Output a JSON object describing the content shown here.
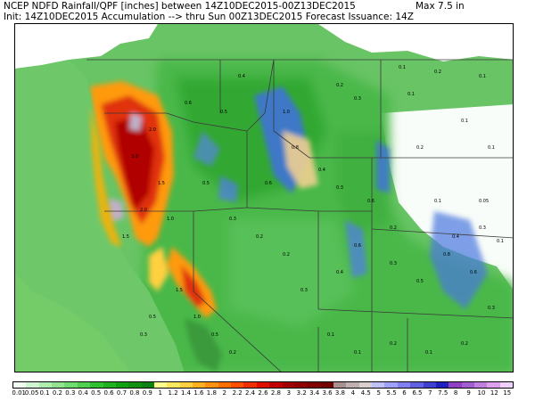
{
  "header": {
    "line1": "NCEP NDFD Rainfall/QPF [inches] between 14Z10DEC2015-00Z13DEC2015",
    "line2": "Init: 14Z10DEC2015 Accumulation --> thru Sun 00Z13DEC2015     Forecast Issuance: 14Z",
    "max": "Max   7.5 in"
  },
  "map_labels": {
    "sample_values": [
      "0.1",
      "0.2",
      "0.3",
      "0.4",
      "0.5",
      "0.6",
      "0.8",
      "1.0",
      "1.5",
      "2.0",
      "3.0",
      "0.05"
    ]
  },
  "colors": {
    "ocean": "#74cc68",
    "no_precip": "#ffffff",
    "state_lines": "#3a3a3a"
  },
  "legend": {
    "labels": [
      "0.01",
      "0.05",
      "0.1",
      "0.2",
      "0.3",
      "0.4",
      "0.5",
      "0.6",
      "0.7",
      "0.8",
      "0.9",
      "1",
      "1.2",
      "1.4",
      "1.6",
      "1.8",
      "2",
      "2.2",
      "2.4",
      "2.6",
      "2.8",
      "3",
      "3.2",
      "3.4",
      "3.6",
      "3.8",
      "4",
      "4.5",
      "5",
      "5.5",
      "6",
      "6.5",
      "7",
      "7.5",
      "8",
      "9",
      "10",
      "12",
      "15"
    ],
    "colors": [
      "#f0fff0",
      "#d0f5d0",
      "#b0ecb0",
      "#90e490",
      "#70dc70",
      "#50d050",
      "#30c030",
      "#20b020",
      "#10a010",
      "#109010",
      "#108010",
      "#ffff90",
      "#ffe860",
      "#ffd040",
      "#ffb020",
      "#ff9010",
      "#ff7000",
      "#ff5000",
      "#f03000",
      "#e01000",
      "#c00000",
      "#a00000",
      "#900000",
      "#800000",
      "#700000",
      "#a89090",
      "#c0b0b0",
      "#d8d0d0",
      "#c0c0ff",
      "#a0a0ff",
      "#8080f0",
      "#6060e0",
      "#4040d0",
      "#2020c0",
      "#9040c0",
      "#a060d0",
      "#c080e0",
      "#e0a0f0",
      "#f0d0ff"
    ]
  }
}
